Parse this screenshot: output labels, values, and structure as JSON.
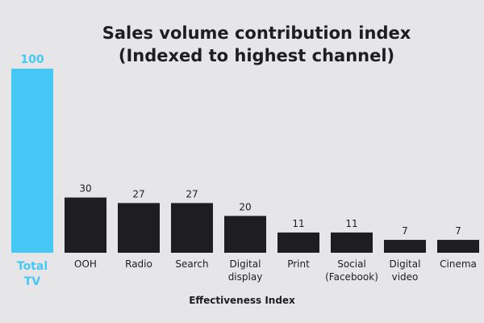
{
  "chart_data": {
    "type": "bar",
    "title": [
      "Sales volume contribution index",
      "(Indexed to highest channel)"
    ],
    "xlabel": "Effectiveness Index",
    "ylabel": "",
    "ylim": [
      0,
      100
    ],
    "categories": [
      [
        "Total",
        "TV"
      ],
      [
        "OOH"
      ],
      [
        "Radio"
      ],
      [
        "Search"
      ],
      [
        "Digital",
        "display"
      ],
      [
        "Print"
      ],
      [
        "Social",
        "(Facebook)"
      ],
      [
        "Digital",
        "video"
      ],
      [
        "Cinema"
      ]
    ],
    "values": [
      100,
      30,
      27,
      27,
      20,
      11,
      11,
      7,
      7
    ],
    "highlight_index": 0,
    "colors": {
      "highlight": "#45c8f5",
      "bar": "#1e1e22",
      "text": "#1e1e22",
      "background": "#e6e6e8"
    }
  }
}
